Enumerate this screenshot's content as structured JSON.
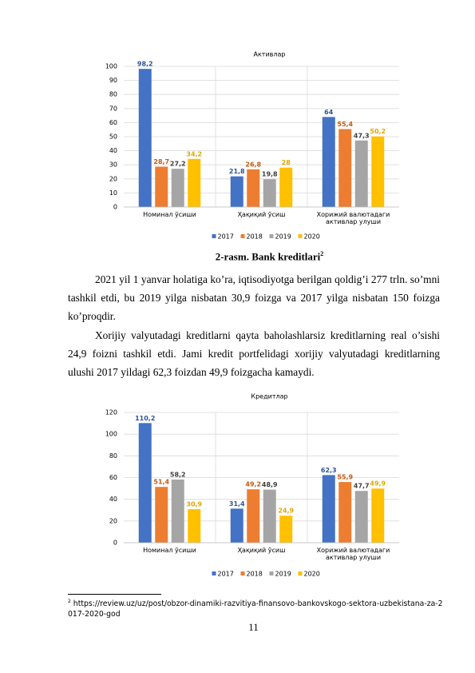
{
  "chart_data": [
    {
      "type": "bar",
      "title": "Активлар",
      "categories": [
        "Номинал ўсиши",
        "Ҳақиқий ўсиш",
        "Хорижий валютадаги активлар улуши"
      ],
      "series": [
        {
          "name": "2017",
          "color": "#4472c4",
          "values": [
            98.2,
            21.8,
            64
          ],
          "value_labels": [
            "98,2",
            "21,8",
            "64"
          ]
        },
        {
          "name": "2018",
          "color": "#ed7d31",
          "values": [
            28.7,
            26.8,
            55.4
          ],
          "value_labels": [
            "28,7",
            "26,8",
            "55,4"
          ]
        },
        {
          "name": "2019",
          "color": "#a5a5a5",
          "values": [
            27.2,
            19.8,
            47.3
          ],
          "value_labels": [
            "27,2",
            "19,8",
            "47,3"
          ]
        },
        {
          "name": "2020",
          "color": "#ffc000",
          "values": [
            34.2,
            28,
            50.2
          ],
          "value_labels": [
            "34,2",
            "28",
            "50,2"
          ]
        }
      ],
      "ylim": [
        0,
        100
      ],
      "yticks": [
        0,
        10,
        20,
        30,
        40,
        50,
        60,
        70,
        80,
        90,
        100
      ],
      "grid": true,
      "legend": "bottom"
    },
    {
      "type": "bar",
      "title": "Кредитлар",
      "categories": [
        "Номинал ўсиши",
        "Ҳақиқий ўсиш",
        "Хорижий валютадаги активлар улуши"
      ],
      "series": [
        {
          "name": "2017",
          "color": "#4472c4",
          "values": [
            110.2,
            31.4,
            62.3
          ],
          "value_labels": [
            "110,2",
            "31,4",
            "62,3"
          ]
        },
        {
          "name": "2018",
          "color": "#ed7d31",
          "values": [
            51.4,
            49.2,
            55.9
          ],
          "value_labels": [
            "51,4",
            "49,2",
            "55,9"
          ]
        },
        {
          "name": "2019",
          "color": "#a5a5a5",
          "values": [
            58.2,
            48.9,
            47.7
          ],
          "value_labels": [
            "58,2",
            "48,9",
            "47,7"
          ]
        },
        {
          "name": "2020",
          "color": "#ffc000",
          "values": [
            30.9,
            24.9,
            49.9
          ],
          "value_labels": [
            "30,9",
            "24,9",
            "49,9"
          ]
        }
      ],
      "ylim": [
        0,
        120
      ],
      "yticks": [
        0,
        20,
        40,
        60,
        80,
        100,
        120
      ],
      "grid": true,
      "legend": "bottom"
    }
  ],
  "document": {
    "caption": "2-rasm. Bank kreditlari",
    "caption_footnote_ref": "2",
    "paragraphs": [
      "2021 yil 1 yanvar holatiga ko’ra, iqtisodiyotga berilgan qoldig’i 277 trln. so’mni tashkil etdi, bu 2019 yilga nisbatan 30,9 foizga va 2017 yilga nisbatan 150 foizga ko’proqdir.",
      "Xorijiy valyutadagi kreditlarni qayta baholashlarsiz kreditlarning real o’sishi 24,9 foizni tashkil etdi. Jami kredit portfelidagi xorijiy valyutadagi kreditlarning ulushi 2017 yildagi 62,3 foizdan 49,9 foizgacha kamaydi."
    ],
    "footnote": {
      "marker": "2",
      "text": "https://review.uz/uz/post/obzor-dinamiki-razvitiya-finansovo-bankovskogo-sektora-uzbekistana-za-2017-2020-god"
    },
    "page_number": "11"
  }
}
